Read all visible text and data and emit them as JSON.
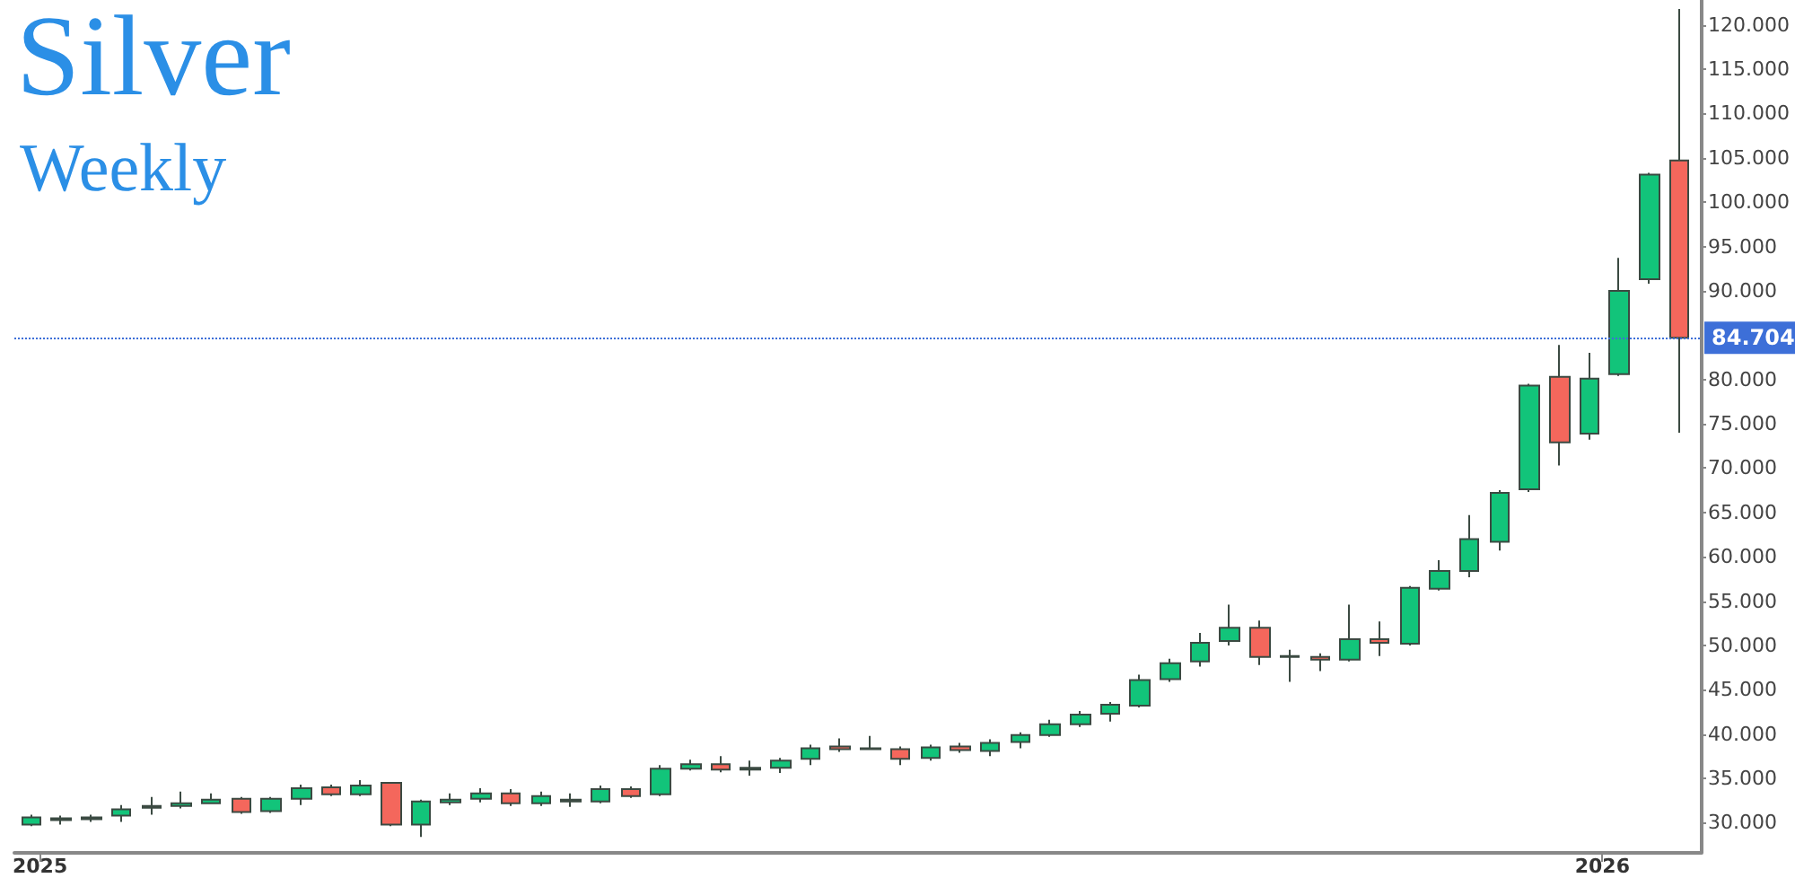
{
  "chart_data": {
    "type": "candlestick",
    "title": "Silver",
    "subtitle": "Weekly",
    "x": [
      "2024-12-30",
      "2025-01-06",
      "2025-01-13",
      "2025-01-20",
      "2025-01-27",
      "2025-02-03",
      "2025-02-10",
      "2025-02-17",
      "2025-02-24",
      "2025-03-03",
      "2025-03-10",
      "2025-03-17",
      "2025-03-24",
      "2025-03-31",
      "2025-04-07",
      "2025-04-14",
      "2025-04-21",
      "2025-04-28",
      "2025-05-05",
      "2025-05-12",
      "2025-05-19",
      "2025-05-26",
      "2025-06-02",
      "2025-06-09",
      "2025-06-16",
      "2025-06-23",
      "2025-06-30",
      "2025-07-07",
      "2025-07-14",
      "2025-07-21",
      "2025-07-28",
      "2025-08-04",
      "2025-08-11",
      "2025-08-18",
      "2025-08-25",
      "2025-09-01",
      "2025-09-08",
      "2025-09-15",
      "2025-09-22",
      "2025-09-29",
      "2025-10-06",
      "2025-10-13",
      "2025-10-20",
      "2025-10-27",
      "2025-11-03",
      "2025-11-10",
      "2025-11-17",
      "2025-11-24",
      "2025-12-01",
      "2025-12-08",
      "2025-12-15",
      "2025-12-22",
      "2025-12-29",
      "2026-01-05",
      "2026-01-12",
      "2026-01-19"
    ],
    "ohlc": [
      [
        29.8,
        30.9,
        29.6,
        30.6
      ],
      [
        30.3,
        30.8,
        29.8,
        30.5
      ],
      [
        30.4,
        30.9,
        30.1,
        30.6
      ],
      [
        30.8,
        32.0,
        30.1,
        31.5
      ],
      [
        31.7,
        32.9,
        30.9,
        31.9
      ],
      [
        31.9,
        33.5,
        31.6,
        32.2
      ],
      [
        32.2,
        33.3,
        32.2,
        32.6
      ],
      [
        32.7,
        32.9,
        31.0,
        31.2
      ],
      [
        31.3,
        32.9,
        31.1,
        32.7
      ],
      [
        32.7,
        34.3,
        32.0,
        33.9
      ],
      [
        34.0,
        34.3,
        33.0,
        33.2
      ],
      [
        33.2,
        34.8,
        33.0,
        34.2
      ],
      [
        34.5,
        34.6,
        29.6,
        29.8
      ],
      [
        29.8,
        32.6,
        28.4,
        32.4
      ],
      [
        32.3,
        33.3,
        32.0,
        32.6
      ],
      [
        32.7,
        33.9,
        32.3,
        33.3
      ],
      [
        33.3,
        33.8,
        31.9,
        32.2
      ],
      [
        32.2,
        33.5,
        31.9,
        33.0
      ],
      [
        32.6,
        33.3,
        31.8,
        32.4
      ],
      [
        32.4,
        34.2,
        32.2,
        33.8
      ],
      [
        33.8,
        34.1,
        32.8,
        33.0
      ],
      [
        33.2,
        36.5,
        33.0,
        36.1
      ],
      [
        36.1,
        37.1,
        35.9,
        36.6
      ],
      [
        36.6,
        37.5,
        35.7,
        36.0
      ],
      [
        36.0,
        37.0,
        35.3,
        36.2
      ],
      [
        36.2,
        37.3,
        35.6,
        37.0
      ],
      [
        37.2,
        38.8,
        36.5,
        38.4
      ],
      [
        38.6,
        39.5,
        38.0,
        38.3
      ],
      [
        38.3,
        39.8,
        38.3,
        38.4
      ],
      [
        38.3,
        38.6,
        36.5,
        37.2
      ],
      [
        37.3,
        38.8,
        37.0,
        38.5
      ],
      [
        38.6,
        39.0,
        37.9,
        38.2
      ],
      [
        38.1,
        39.4,
        37.5,
        39.0
      ],
      [
        39.1,
        40.2,
        38.4,
        39.9
      ],
      [
        39.9,
        41.6,
        39.7,
        41.1
      ],
      [
        41.1,
        42.6,
        40.8,
        42.2
      ],
      [
        42.3,
        43.6,
        41.4,
        43.3
      ],
      [
        43.2,
        46.7,
        43.0,
        46.1
      ],
      [
        46.2,
        48.5,
        45.9,
        48.0
      ],
      [
        48.2,
        51.4,
        47.6,
        50.3
      ],
      [
        50.5,
        54.6,
        50.0,
        52.0
      ],
      [
        52.0,
        52.8,
        47.8,
        48.7
      ],
      [
        48.7,
        49.5,
        45.9,
        48.8
      ],
      [
        48.7,
        49.1,
        47.1,
        48.4
      ],
      [
        48.4,
        54.6,
        48.2,
        50.7
      ],
      [
        50.7,
        52.7,
        48.8,
        50.3
      ],
      [
        50.2,
        56.7,
        50.0,
        56.5
      ],
      [
        56.4,
        59.6,
        56.2,
        58.4
      ],
      [
        58.4,
        64.7,
        57.7,
        62.0
      ],
      [
        61.7,
        67.5,
        60.7,
        67.2
      ],
      [
        67.6,
        79.5,
        67.3,
        79.3
      ],
      [
        80.3,
        83.9,
        70.3,
        72.9
      ],
      [
        73.9,
        83.0,
        73.2,
        80.1
      ],
      [
        80.6,
        93.7,
        80.4,
        90.0
      ],
      [
        91.3,
        103.3,
        90.8,
        103.1
      ],
      [
        104.7,
        121.8,
        74.0,
        84.7
      ]
    ],
    "colors": [
      "#12c47a",
      "#12c47a",
      "#12c47a",
      "#12c47a",
      "#12c47a",
      "#12c47a",
      "#12c47a",
      "#f4675c",
      "#12c47a",
      "#12c47a",
      "#f4675c",
      "#12c47a",
      "#f4675c",
      "#12c47a",
      "#12c47a",
      "#12c47a",
      "#f4675c",
      "#12c47a",
      "#f4675c",
      "#12c47a",
      "#f4675c",
      "#12c47a",
      "#12c47a",
      "#f4675c",
      "#12c47a",
      "#12c47a",
      "#12c47a",
      "#f4675c",
      "#12c47a",
      "#f4675c",
      "#12c47a",
      "#f4675c",
      "#12c47a",
      "#12c47a",
      "#12c47a",
      "#12c47a",
      "#12c47a",
      "#12c47a",
      "#12c47a",
      "#12c47a",
      "#12c47a",
      "#f4675c",
      "#12c47a",
      "#f4675c",
      "#12c47a",
      "#f4675c",
      "#12c47a",
      "#12c47a",
      "#12c47a",
      "#12c47a",
      "#12c47a",
      "#f4675c",
      "#12c47a",
      "#12c47a",
      "#12c47a",
      "#f4675c"
    ],
    "xlim": [
      "2024-12-26",
      "2026-01-24"
    ],
    "xticks": [
      {
        "value": "2025-01-01",
        "label": "2025"
      },
      {
        "value": "2026-01-01",
        "label": "2026"
      }
    ],
    "ylim": [
      26.6,
      122.8
    ],
    "yticks": [
      {
        "value": 30,
        "label": "30.000"
      },
      {
        "value": 35,
        "label": "35.000"
      },
      {
        "value": 40,
        "label": "40.000"
      },
      {
        "value": 45,
        "label": "45.000"
      },
      {
        "value": 50,
        "label": "50.000"
      },
      {
        "value": 55,
        "label": "55.000"
      },
      {
        "value": 60,
        "label": "60.000"
      },
      {
        "value": 65,
        "label": "65.000"
      },
      {
        "value": 70,
        "label": "70.000"
      },
      {
        "value": 75,
        "label": "75.000"
      },
      {
        "value": 80,
        "label": "80.000"
      },
      {
        "value": 90,
        "label": "90.000"
      },
      {
        "value": 95,
        "label": "95.000"
      },
      {
        "value": 100,
        "label": "100.000"
      },
      {
        "value": 105,
        "label": "105.000"
      },
      {
        "value": 110,
        "label": "110.000"
      },
      {
        "value": 115,
        "label": "115.000"
      },
      {
        "value": 120,
        "label": "120.000"
      }
    ],
    "ref_lines": [
      {
        "axis": "y",
        "value": 84.704,
        "label": "84.704",
        "color": "#3d6fd8",
        "line_style": "dotted"
      }
    ],
    "grid": false
  }
}
